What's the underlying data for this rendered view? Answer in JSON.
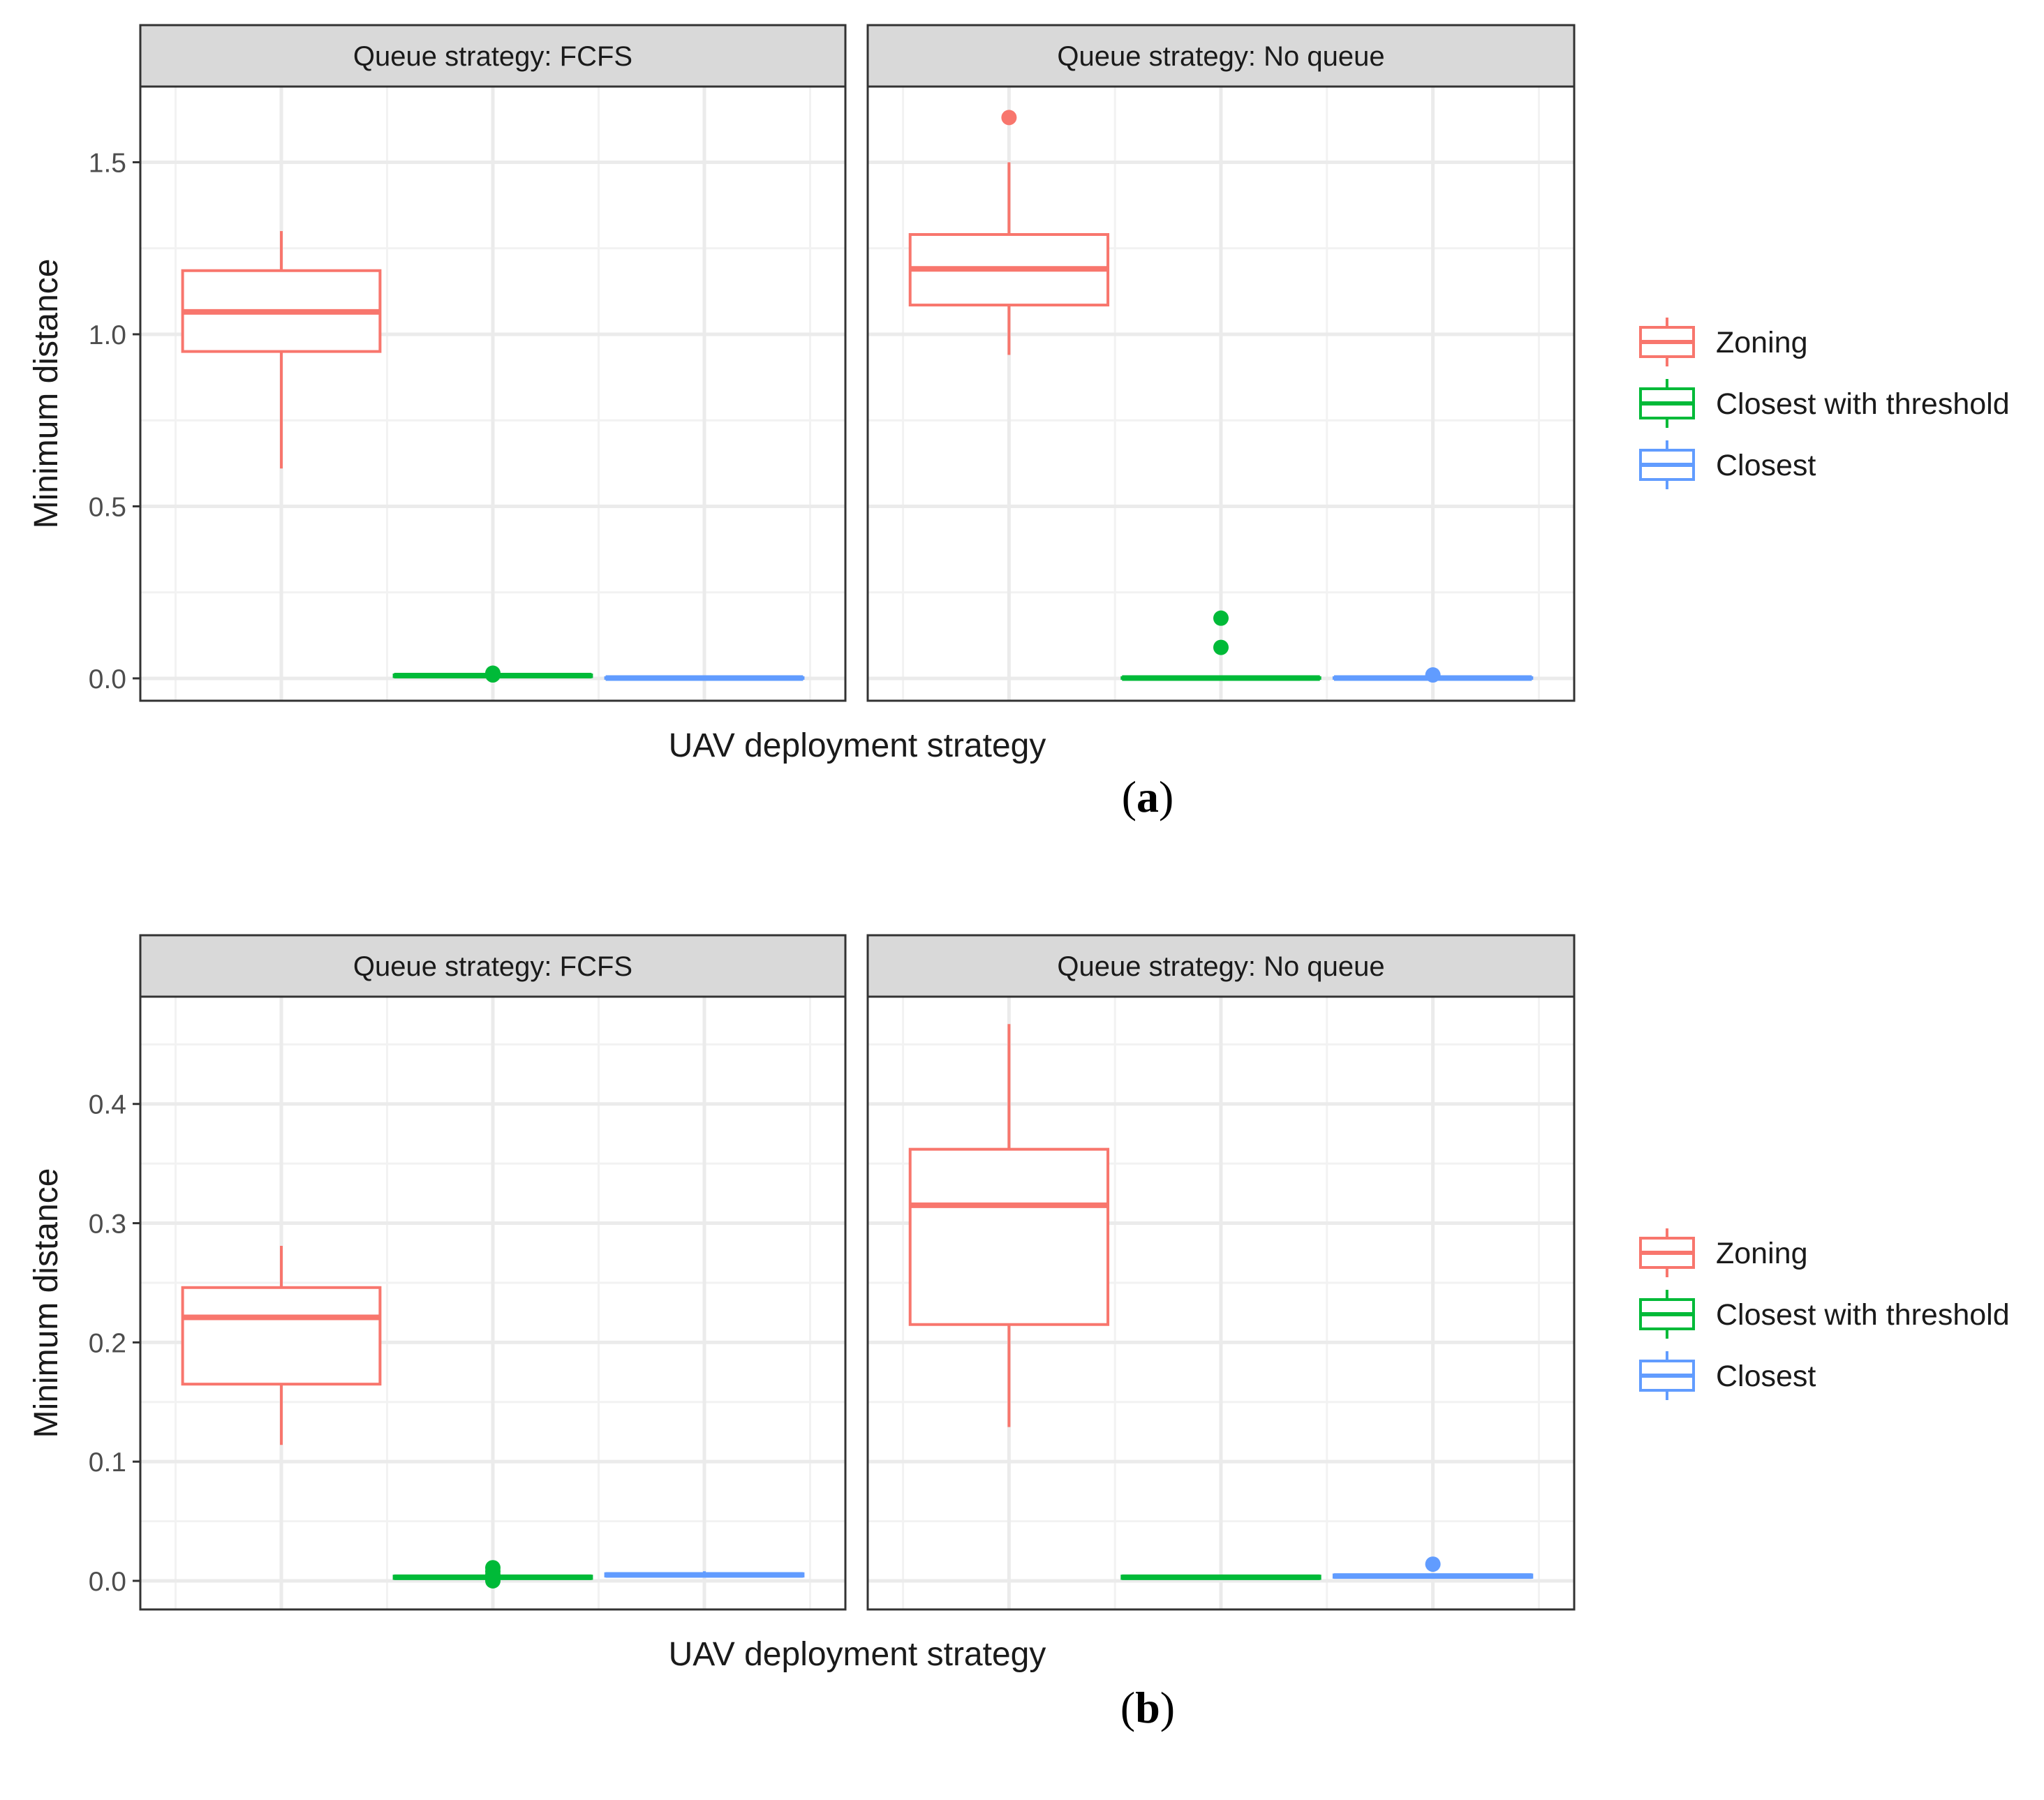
{
  "chart_data": [
    {
      "type": "boxplot",
      "panel_label": "(a)",
      "label_letter": "a",
      "xlabel": "UAV deployment strategy",
      "ylabel": "Minimum distance",
      "ylim": [
        -0.065,
        1.72
      ],
      "yticks": [
        {
          "value": 0.0,
          "label": "0.0"
        },
        {
          "value": 0.5,
          "label": "0.5"
        },
        {
          "value": 1.0,
          "label": "1.0"
        },
        {
          "value": 1.5,
          "label": "1.5"
        }
      ],
      "minor_grid": [
        0.25,
        0.75,
        1.25
      ],
      "categories": [
        "Zoning",
        "Closest with threshold",
        "Closest"
      ],
      "facets": [
        {
          "title": "Queue strategy: FCFS",
          "boxes": [
            {
              "series": "Zoning",
              "min": 0.61,
              "q1": 0.95,
              "median": 1.065,
              "q3": 1.185,
              "max": 1.3,
              "outliers": []
            },
            {
              "series": "Closest with threshold",
              "min": 0.005,
              "q1": 0.005,
              "median": 0.008,
              "q3": 0.01,
              "max": 0.012,
              "outliers": [
                0.015,
                0.01
              ]
            },
            {
              "series": "Closest",
              "min": 0.0,
              "q1": 0.0,
              "median": 0.001,
              "q3": 0.002,
              "max": 0.003,
              "outliers": []
            }
          ]
        },
        {
          "title": "Queue strategy: No queue",
          "boxes": [
            {
              "series": "Zoning",
              "min": 0.94,
              "q1": 1.085,
              "median": 1.19,
              "q3": 1.29,
              "max": 1.5,
              "outliers": [
                1.63
              ]
            },
            {
              "series": "Closest with threshold",
              "min": 0.0,
              "q1": 0.0,
              "median": 0.001,
              "q3": 0.002,
              "max": 0.003,
              "outliers": [
                0.175,
                0.09
              ]
            },
            {
              "series": "Closest",
              "min": 0.0,
              "q1": 0.0,
              "median": 0.001,
              "q3": 0.002,
              "max": 0.003,
              "outliers": [
                0.01
              ]
            }
          ]
        }
      ]
    },
    {
      "type": "boxplot",
      "panel_label": "(b)",
      "label_letter": "b",
      "xlabel": "UAV deployment strategy",
      "ylabel": "Minimum distance",
      "ylim": [
        -0.024,
        0.49
      ],
      "yticks": [
        {
          "value": 0.0,
          "label": "0.0"
        },
        {
          "value": 0.1,
          "label": "0.1"
        },
        {
          "value": 0.2,
          "label": "0.2"
        },
        {
          "value": 0.3,
          "label": "0.3"
        },
        {
          "value": 0.4,
          "label": "0.4"
        }
      ],
      "minor_grid": [
        0.05,
        0.15,
        0.25,
        0.35,
        0.45
      ],
      "categories": [
        "Zoning",
        "Closest with threshold",
        "Closest"
      ],
      "facets": [
        {
          "title": "Queue strategy: FCFS",
          "boxes": [
            {
              "series": "Zoning",
              "min": 0.114,
              "q1": 0.165,
              "median": 0.221,
              "q3": 0.246,
              "max": 0.281,
              "outliers": []
            },
            {
              "series": "Closest with threshold",
              "min": 0.002,
              "q1": 0.002,
              "median": 0.003,
              "q3": 0.004,
              "max": 0.005,
              "outliers": [
                0.011,
                0.008,
                0.005,
                0.0
              ]
            },
            {
              "series": "Closest",
              "min": 0.003,
              "q1": 0.004,
              "median": 0.005,
              "q3": 0.006,
              "max": 0.008,
              "outliers": []
            }
          ]
        },
        {
          "title": "Queue strategy: No queue",
          "boxes": [
            {
              "series": "Zoning",
              "min": 0.129,
              "q1": 0.215,
              "median": 0.315,
              "q3": 0.362,
              "max": 0.467,
              "outliers": []
            },
            {
              "series": "Closest with threshold",
              "min": 0.002,
              "q1": 0.002,
              "median": 0.003,
              "q3": 0.004,
              "max": 0.005,
              "outliers": []
            },
            {
              "series": "Closest",
              "min": 0.002,
              "q1": 0.003,
              "median": 0.004,
              "q3": 0.005,
              "max": 0.006,
              "outliers": [
                0.014
              ]
            }
          ]
        }
      ]
    }
  ],
  "legend": {
    "items": [
      {
        "label": "Zoning",
        "color": "#F8766D"
      },
      {
        "label": "Closest with threshold",
        "color": "#00BA38"
      },
      {
        "label": "Closest",
        "color": "#619CFF"
      }
    ]
  },
  "colors": {
    "strip_bg": "#D9D9D9",
    "panel_border": "#333333",
    "grid_major": "#EBEBEB",
    "grid_minor": "#F2F2F2",
    "axis_text": "#4D4D4D",
    "title_text": "#1A1A1A"
  }
}
